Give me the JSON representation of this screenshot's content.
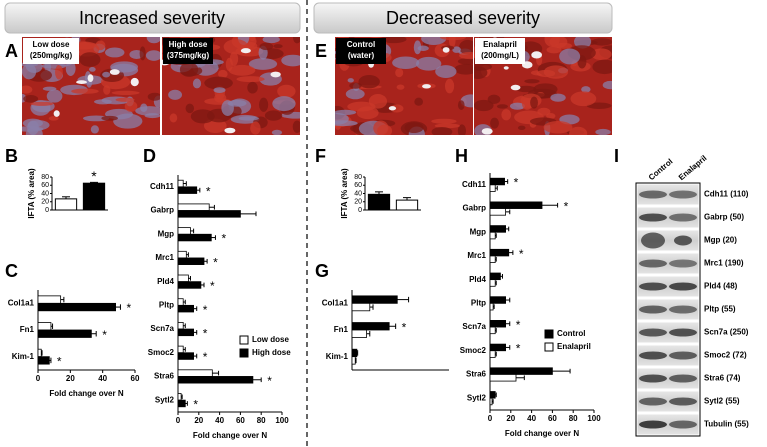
{
  "header": {
    "left": "Increased severity",
    "right": "Decreased severity"
  },
  "panel_letters": [
    "A",
    "B",
    "C",
    "D",
    "E",
    "F",
    "G",
    "H",
    "I"
  ],
  "micrographs": [
    [
      "Low dose",
      "(250mg/kg)"
    ],
    [
      "High dose",
      "(375mg/kg)"
    ],
    [
      "Control",
      "(water)"
    ],
    [
      "Enalapril",
      "(200mg/L)"
    ]
  ],
  "blot": {
    "columns": [
      "Control",
      "Enalapril"
    ],
    "bands": [
      "Cdh11 (110)",
      "Gabrp (50)",
      "Mgp (20)",
      "Mrc1 (190)",
      "Pld4 (48)",
      "Pltp (55)",
      "Scn7a (250)",
      "Smoc2 (72)",
      "Stra6 (74)",
      "Sytl2 (55)",
      "Tubulin (55)"
    ]
  },
  "chart_data": [
    {
      "type": "bar",
      "ylabel": "IFTA (% area)",
      "values": [
        27,
        65
      ],
      "errors": [
        5,
        2
      ],
      "colors": [
        "#ffffff",
        "#000000"
      ],
      "significance": [
        null,
        "*"
      ],
      "ylim": [
        0,
        80
      ],
      "yticks": [
        0,
        20,
        40,
        60,
        80
      ]
    },
    {
      "type": "barh",
      "categories": [
        "Col1a1",
        "Fn1",
        "Kim-1"
      ],
      "xlabel": "Fold change over N",
      "xlim": [
        0,
        60
      ],
      "xticks": [
        0,
        20,
        40,
        60
      ],
      "series": [
        {
          "color": "#ffffff",
          "values": [
            14,
            8,
            2
          ],
          "errors": [
            2,
            1,
            0.5
          ]
        },
        {
          "color": "#000000",
          "values": [
            48,
            33,
            7
          ],
          "errors": [
            3,
            3,
            1
          ],
          "significance": [
            "*",
            "*",
            "*"
          ]
        }
      ]
    },
    {
      "type": "barh",
      "categories": [
        "Cdh11",
        "Gabrp",
        "Mgp",
        "Mrc1",
        "Pld4",
        "Pltp",
        "Scn7a",
        "Smoc2",
        "Stra6",
        "Sytl2"
      ],
      "xlabel": "Fold change over N",
      "xlim": [
        0,
        100
      ],
      "xticks": [
        0,
        20,
        40,
        60,
        80,
        100
      ],
      "legend": "right",
      "series": [
        {
          "name": "Low dose",
          "color": "#ffffff",
          "values": [
            5,
            30,
            12,
            8,
            10,
            5,
            5,
            5,
            33,
            3
          ],
          "errors": [
            3,
            5,
            3,
            2,
            2,
            2,
            2,
            2,
            6,
            1
          ]
        },
        {
          "name": "High dose",
          "color": "#000000",
          "values": [
            18,
            60,
            32,
            25,
            22,
            15,
            15,
            15,
            72,
            7
          ],
          "errors": [
            3,
            15,
            4,
            3,
            3,
            3,
            3,
            3,
            8,
            2
          ],
          "significance": [
            "*",
            null,
            "*",
            "*",
            "*",
            "*",
            "*",
            "*",
            "*",
            "*"
          ]
        }
      ]
    },
    {
      "type": "bar",
      "ylabel": "IFTA (% area)",
      "values": [
        38,
        24
      ],
      "errors": [
        6,
        6
      ],
      "colors": [
        "#000000",
        "#ffffff"
      ],
      "ylim": [
        0,
        80
      ],
      "yticks": [
        0,
        20,
        40,
        60,
        80
      ]
    },
    {
      "type": "barh",
      "categories": [
        "Col1a1",
        "Fn1",
        "Kim-1"
      ],
      "xlim": [
        0,
        60
      ],
      "series": [
        {
          "color": "#000000",
          "values": [
            28,
            23,
            3
          ],
          "errors": [
            7,
            4,
            0.5
          ],
          "significance": [
            null,
            "*",
            null
          ]
        },
        {
          "color": "#ffffff",
          "values": [
            11,
            9,
            2
          ],
          "errors": [
            2,
            2,
            0.5
          ]
        }
      ]
    },
    {
      "type": "barh",
      "categories": [
        "Cdh11",
        "Gabrp",
        "Mgp",
        "Mrc1",
        "Pld4",
        "Pltp",
        "Scn7a",
        "Smoc2",
        "Stra6",
        "Sytl2"
      ],
      "xlabel": "Fold change over N",
      "xlim": [
        0,
        100
      ],
      "xticks": [
        0,
        20,
        40,
        60,
        80,
        100
      ],
      "legend": "right",
      "series": [
        {
          "name": "Control",
          "color": "#000000",
          "values": [
            14,
            50,
            15,
            18,
            10,
            15,
            15,
            15,
            60,
            5
          ],
          "errors": [
            3,
            15,
            3,
            4,
            2,
            4,
            4,
            4,
            17,
            1
          ],
          "significance": [
            "*",
            "*",
            null,
            "*",
            null,
            null,
            "*",
            "*",
            null,
            null
          ]
        },
        {
          "name": "Enalapril",
          "color": "#ffffff",
          "values": [
            5,
            15,
            5,
            5,
            5,
            3,
            5,
            5,
            25,
            2
          ],
          "errors": [
            2,
            4,
            1,
            1,
            1,
            1,
            1,
            1,
            8,
            1
          ]
        }
      ]
    }
  ]
}
